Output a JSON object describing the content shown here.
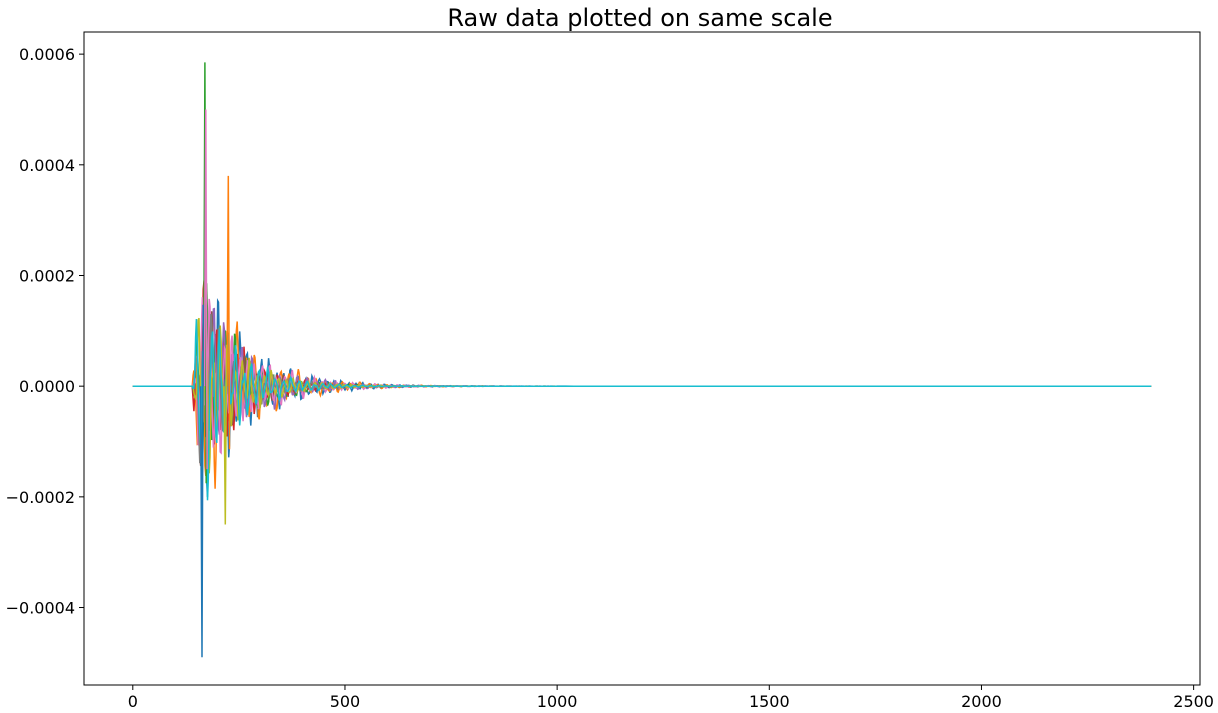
{
  "chart_data": {
    "type": "line",
    "title": "Raw data plotted on same scale",
    "xlabel": "",
    "ylabel": "",
    "xlim": [
      -115,
      2515
    ],
    "ylim": [
      -0.00054,
      0.00064
    ],
    "x_ticks": [
      0,
      500,
      1000,
      1500,
      2000,
      2500
    ],
    "x_tick_labels": [
      "0",
      "500",
      "1000",
      "1500",
      "2000",
      "2500"
    ],
    "y_ticks": [
      -0.0004,
      -0.0002,
      0.0,
      0.0002,
      0.0004,
      0.0006
    ],
    "y_tick_labels": [
      "−0.0004",
      "−0.0002",
      "0.0000",
      "0.0002",
      "0.0004",
      "0.0006"
    ],
    "grid": false,
    "legend": "none",
    "series_count": 10,
    "colors": [
      "#1f77b4",
      "#ff7f0e",
      "#2ca02c",
      "#d62728",
      "#9467bd",
      "#8c564b",
      "#e377c2",
      "#7f7f7f",
      "#bcbd22",
      "#17becf"
    ],
    "x_range": [
      0,
      2400
    ],
    "onset_x": 140,
    "peak_x": 170,
    "max_value": 0.000585,
    "min_value": -0.00049,
    "notes_peaks": [
      {
        "series": 2,
        "x": 170,
        "y": 0.000585
      },
      {
        "series": 6,
        "x": 172,
        "y": 0.0005
      },
      {
        "series": 0,
        "x": 163,
        "y": -0.00049
      },
      {
        "series": 1,
        "x": 225,
        "y": 0.00038
      },
      {
        "series": 8,
        "x": 218,
        "y": -0.00025
      }
    ]
  }
}
